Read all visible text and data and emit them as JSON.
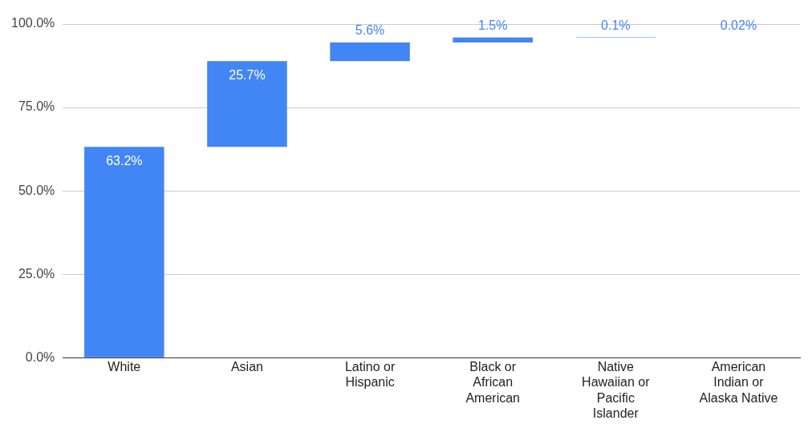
{
  "chart_data": {
    "type": "bar",
    "categories": [
      "White",
      "Asian",
      "Latino or Hispanic",
      "Black or African American",
      "Native Hawaiian or Pacific Islander",
      "American Indian or Alaska Native"
    ],
    "values": [
      63.2,
      25.7,
      5.6,
      1.5,
      0.1,
      0.02
    ],
    "base": [
      0,
      63.2,
      88.9,
      94.5,
      96.0,
      96.1
    ],
    "value_labels": [
      "63.2%",
      "25.7%",
      "5.6%",
      "1.5%",
      "0.1%",
      "0.02%"
    ],
    "color": "#4285f4",
    "ylim": [
      0,
      100
    ],
    "yticks": [
      {
        "value": 0,
        "label": "0.0%"
      },
      {
        "value": 25,
        "label": "25.0%"
      },
      {
        "value": 50,
        "label": "50.0%"
      },
      {
        "value": 75,
        "label": "75.0%"
      },
      {
        "value": 100,
        "label": "100.0%"
      }
    ],
    "grid": "y",
    "legend": false
  }
}
